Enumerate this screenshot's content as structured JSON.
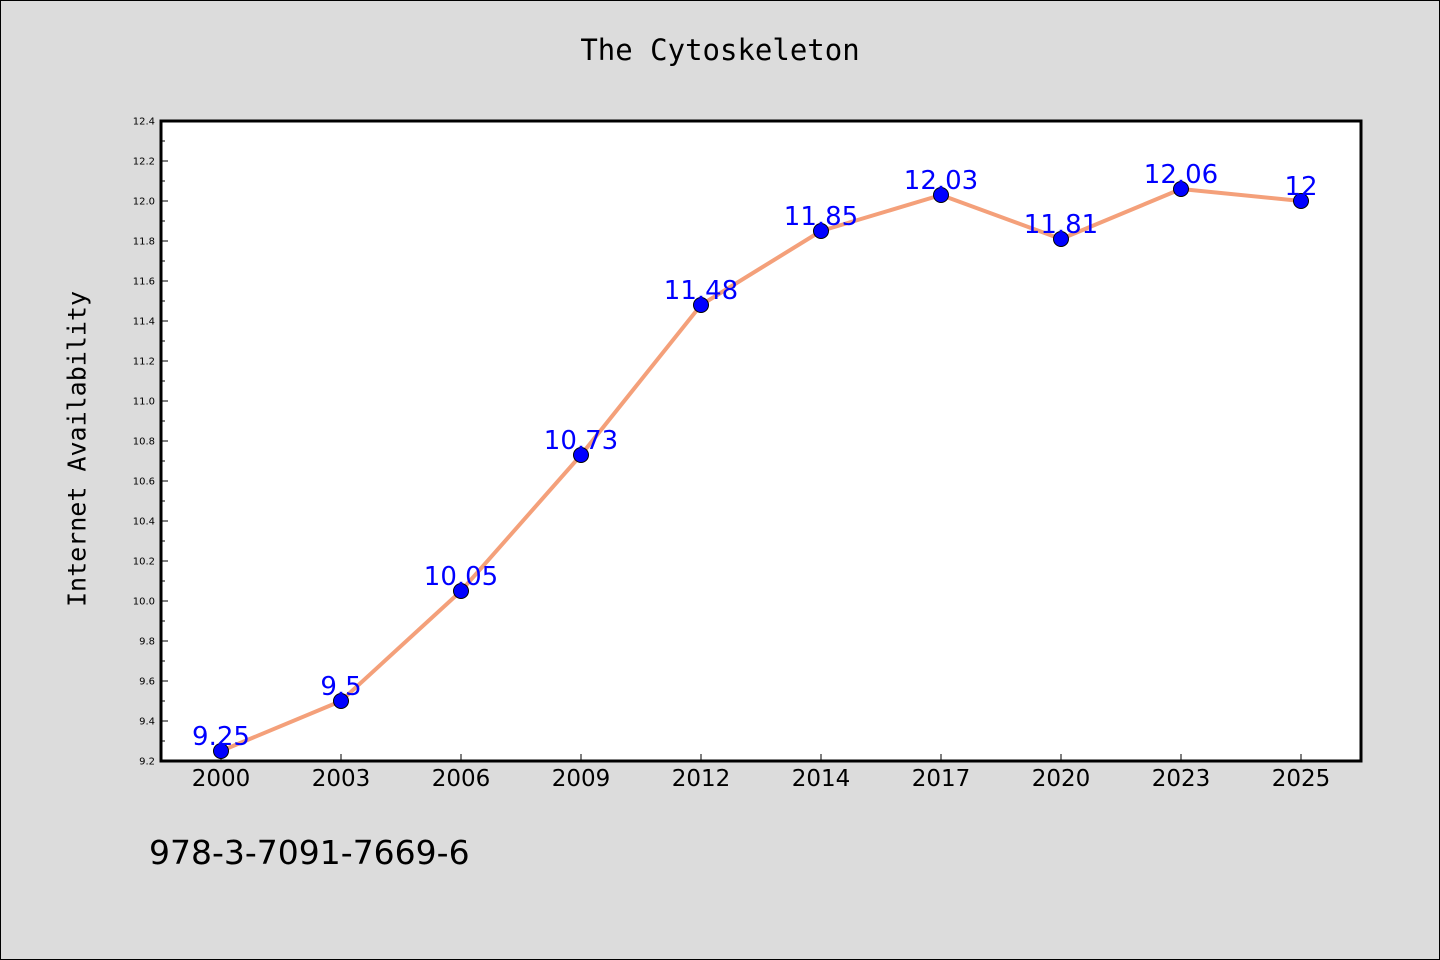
{
  "chart_data": {
    "type": "line",
    "title": "The Cytoskeleton",
    "xlabel": "",
    "ylabel": "Internet Availability",
    "categories": [
      "2000",
      "2003",
      "2006",
      "2009",
      "2012",
      "2014",
      "2017",
      "2020",
      "2023",
      "2025"
    ],
    "series": [
      {
        "values": [
          9.25,
          9.5,
          10.05,
          10.73,
          11.48,
          11.85,
          12.03,
          11.81,
          12.06,
          12
        ],
        "labels": [
          "9.25",
          "9.5",
          "10.05",
          "10.73",
          "11.48",
          "11.85",
          "12.03",
          "11.81",
          "12.06",
          "12"
        ],
        "line_color": "#f4a07a",
        "marker_color": "#0000ff"
      }
    ],
    "ylim": [
      9.2,
      12.4
    ],
    "y_ticks": [
      "9.2",
      "9.4",
      "9.6",
      "9.8",
      "10.0",
      "10.2",
      "10.4",
      "10.6",
      "10.8",
      "11.0",
      "11.2",
      "11.4",
      "11.6",
      "11.8",
      "12.0",
      "12.2",
      "12.4"
    ],
    "grid": false,
    "legend": "none",
    "label_color": "#0000ff"
  },
  "footer": {
    "code": "978-3-7091-7669-6"
  }
}
